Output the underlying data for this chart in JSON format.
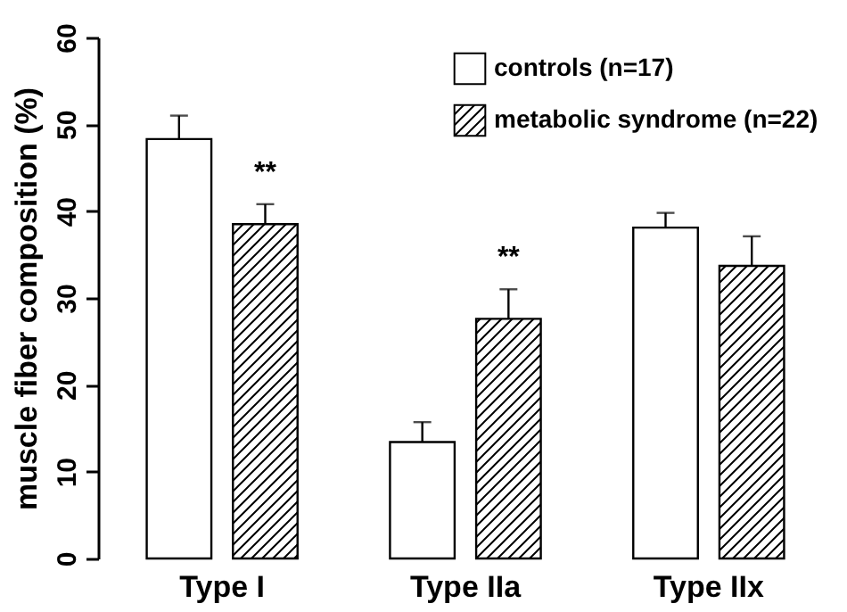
{
  "chart_data": {
    "type": "bar",
    "ylabel": "muscle fiber composition (%)",
    "categories": [
      "Type I",
      "Type IIa",
      "Type IIx"
    ],
    "series": [
      {
        "name": "controls (n=17)",
        "color": "#ffffff",
        "values": [
          48.3,
          13.4,
          38.1
        ],
        "errors": [
          [
            48.3,
            51.0
          ],
          [
            13.4,
            15.7
          ],
          [
            38.1,
            39.8
          ]
        ]
      },
      {
        "name": "metabolic syndrome (n=22)",
        "color": "#000000",
        "values": [
          38.5,
          27.6,
          33.7
        ],
        "errors": [
          [
            38.5,
            40.8
          ],
          [
            27.6,
            31.0
          ],
          [
            33.7,
            37.1
          ]
        ],
        "value_labels": [
          "**",
          "**",
          null
        ]
      }
    ],
    "ylim": [
      0,
      60
    ],
    "yticks": [
      0,
      10,
      20,
      30,
      40,
      50,
      60
    ],
    "grid": false,
    "legend": "top right"
  }
}
